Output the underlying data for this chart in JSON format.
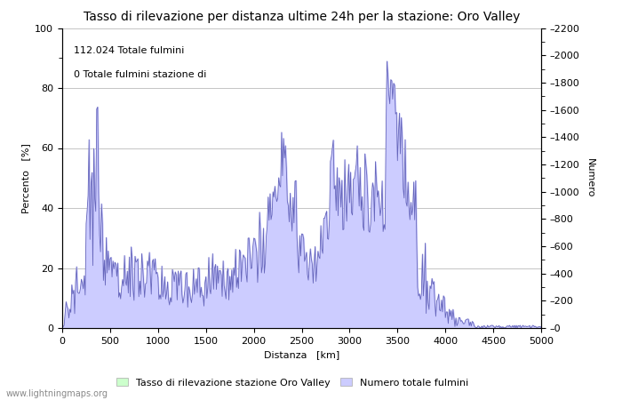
{
  "title": "Tasso di rilevazione per distanza ultime 24h per la stazione: Oro Valley",
  "xlabel": "Distanza   [km]",
  "ylabel_left": "Percento   [%]",
  "ylabel_right": "Numero",
  "annotation1": "112.024 Totale fulmini",
  "annotation2": "0 Totale fulmini stazione di",
  "xlim": [
    0,
    5000
  ],
  "ylim_left": [
    0,
    100
  ],
  "ylim_right": [
    0,
    2200
  ],
  "yticks_left": [
    0,
    20,
    40,
    60,
    80,
    100
  ],
  "yticks_right": [
    0,
    200,
    400,
    600,
    800,
    1000,
    1200,
    1400,
    1600,
    1800,
    2000,
    2200
  ],
  "yticks_right_minor": [
    100,
    300,
    500,
    700,
    900,
    1100,
    1300,
    1500,
    1700,
    1900,
    2100
  ],
  "xticks": [
    0,
    500,
    1000,
    1500,
    2000,
    2500,
    3000,
    3500,
    4000,
    4500,
    5000
  ],
  "legend_label1": "Tasso di rilevazione stazione Oro Valley",
  "legend_label2": "Numero totale fulmini",
  "fill_color_green": "#ccffcc",
  "fill_color_blue": "#ccccff",
  "line_color": "#6666bb",
  "grid_color": "#bbbbbb",
  "bg_color": "#ffffff",
  "watermark": "www.lightningmaps.org",
  "title_fontsize": 10,
  "axis_fontsize": 8,
  "annotation_fontsize": 8,
  "tick_fontsize": 8
}
